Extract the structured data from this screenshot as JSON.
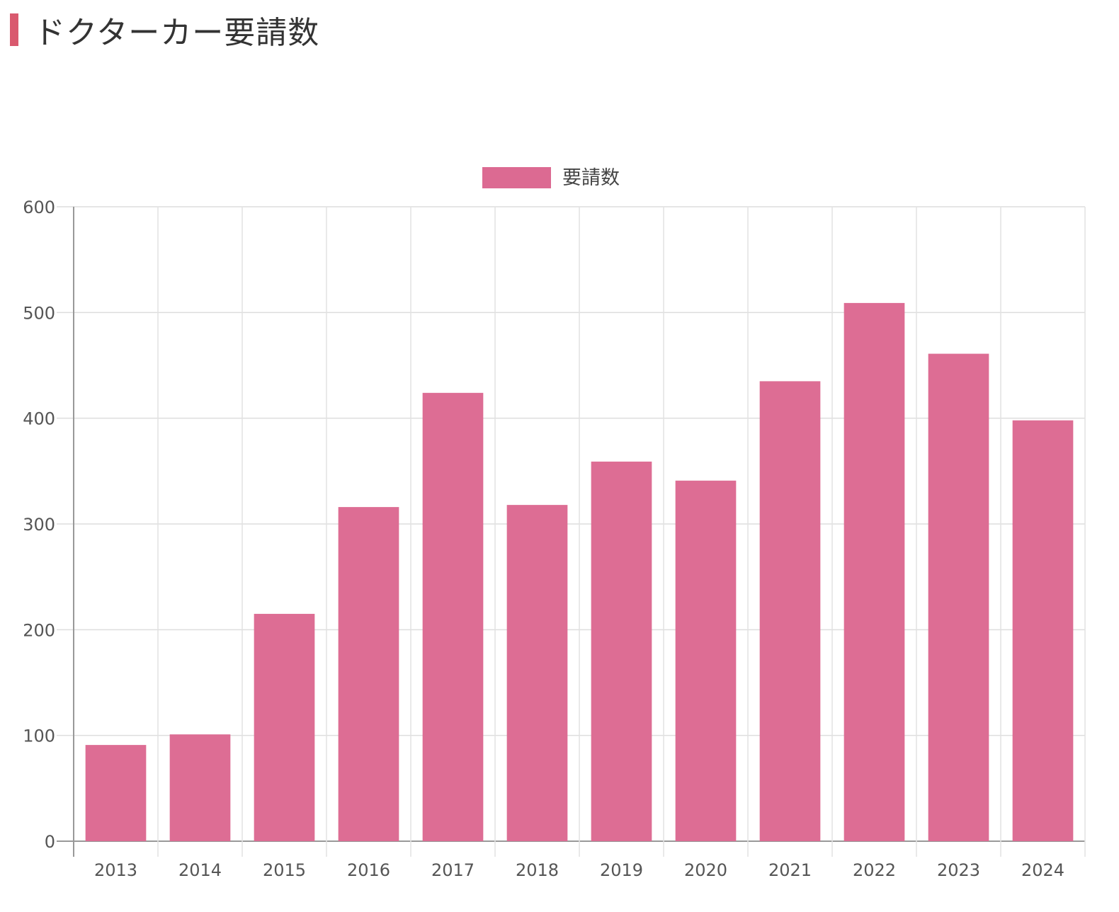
{
  "page": {
    "heading": "ドクターカー要請数"
  },
  "chart_data": {
    "type": "bar",
    "title": "ドクターカー要請数",
    "categories": [
      "2013",
      "2014",
      "2015",
      "2016",
      "2017",
      "2018",
      "2019",
      "2020",
      "2021",
      "2022",
      "2023",
      "2024"
    ],
    "series": [
      {
        "name": "要請数",
        "values": [
          91,
          101,
          215,
          316,
          424,
          318,
          359,
          341,
          435,
          509,
          461,
          398
        ],
        "color": "#dc6a92"
      }
    ],
    "xlabel": "",
    "ylabel": "",
    "ylim": [
      0,
      600
    ],
    "yticks": [
      0,
      100,
      200,
      300,
      400,
      500,
      600
    ],
    "grid": true,
    "legend_position": "top-center"
  }
}
